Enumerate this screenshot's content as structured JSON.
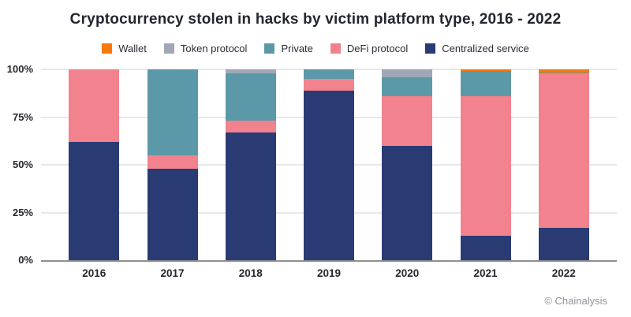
{
  "title": "Cryptocurrency stolen in hacks by victim platform type, 2016 - 2022",
  "footer": "© Chainalysis",
  "colors": {
    "wallet": "#F8790B",
    "token_protocol": "#9FA8B4",
    "private": "#5C99A8",
    "defi_protocol": "#F2828D",
    "centralized_service": "#2A3B74",
    "gridline": "#E8E8E8",
    "axis_line": "#8F8F8F",
    "title_text": "#23252F",
    "footer_text": "#8F939A"
  },
  "legend": [
    {
      "label": "Wallet",
      "color": "#F8790B",
      "key": "wallet"
    },
    {
      "label": "Token protocol",
      "color": "#9FA8B4",
      "key": "token-protocol"
    },
    {
      "label": "Private",
      "color": "#5C99A8",
      "key": "private"
    },
    {
      "label": "DeFi protocol",
      "color": "#F2828D",
      "key": "defi-protocol"
    },
    {
      "label": "Centralized service",
      "color": "#2A3B74",
      "key": "centralized-service"
    }
  ],
  "chart_data": {
    "type": "bar",
    "stacked": true,
    "title": "Cryptocurrency stolen in hacks by victim platform type, 2016 - 2022",
    "categories": [
      "2016",
      "2017",
      "2018",
      "2019",
      "2020",
      "2021",
      "2022"
    ],
    "series": [
      {
        "name": "Centralized service",
        "color": "#2A3B74",
        "values": [
          62,
          48,
          67,
          89,
          60,
          13,
          17
        ]
      },
      {
        "name": "DeFi protocol",
        "color": "#F2828D",
        "values": [
          38,
          7,
          6,
          6,
          26,
          73,
          81
        ]
      },
      {
        "name": "Private",
        "color": "#5C99A8",
        "values": [
          0,
          45,
          25,
          5,
          10,
          13,
          0.5
        ]
      },
      {
        "name": "Token protocol",
        "color": "#9FA8B4",
        "values": [
          0,
          0,
          2,
          0,
          4,
          0,
          0
        ]
      },
      {
        "name": "Wallet",
        "color": "#F8790B",
        "values": [
          0,
          0,
          0,
          0,
          0,
          1,
          1.5
        ]
      }
    ],
    "xlabel": "",
    "ylabel": "",
    "ylim": [
      0,
      100
    ],
    "yticks": [
      {
        "label": "0%",
        "value": 0
      },
      {
        "label": "25%",
        "value": 25
      },
      {
        "label": "50%",
        "value": 50
      },
      {
        "label": "75%",
        "value": 75
      },
      {
        "label": "100%",
        "value": 100
      }
    ],
    "grid": true,
    "legend_position": "top",
    "units": "percent of total value stolen"
  }
}
